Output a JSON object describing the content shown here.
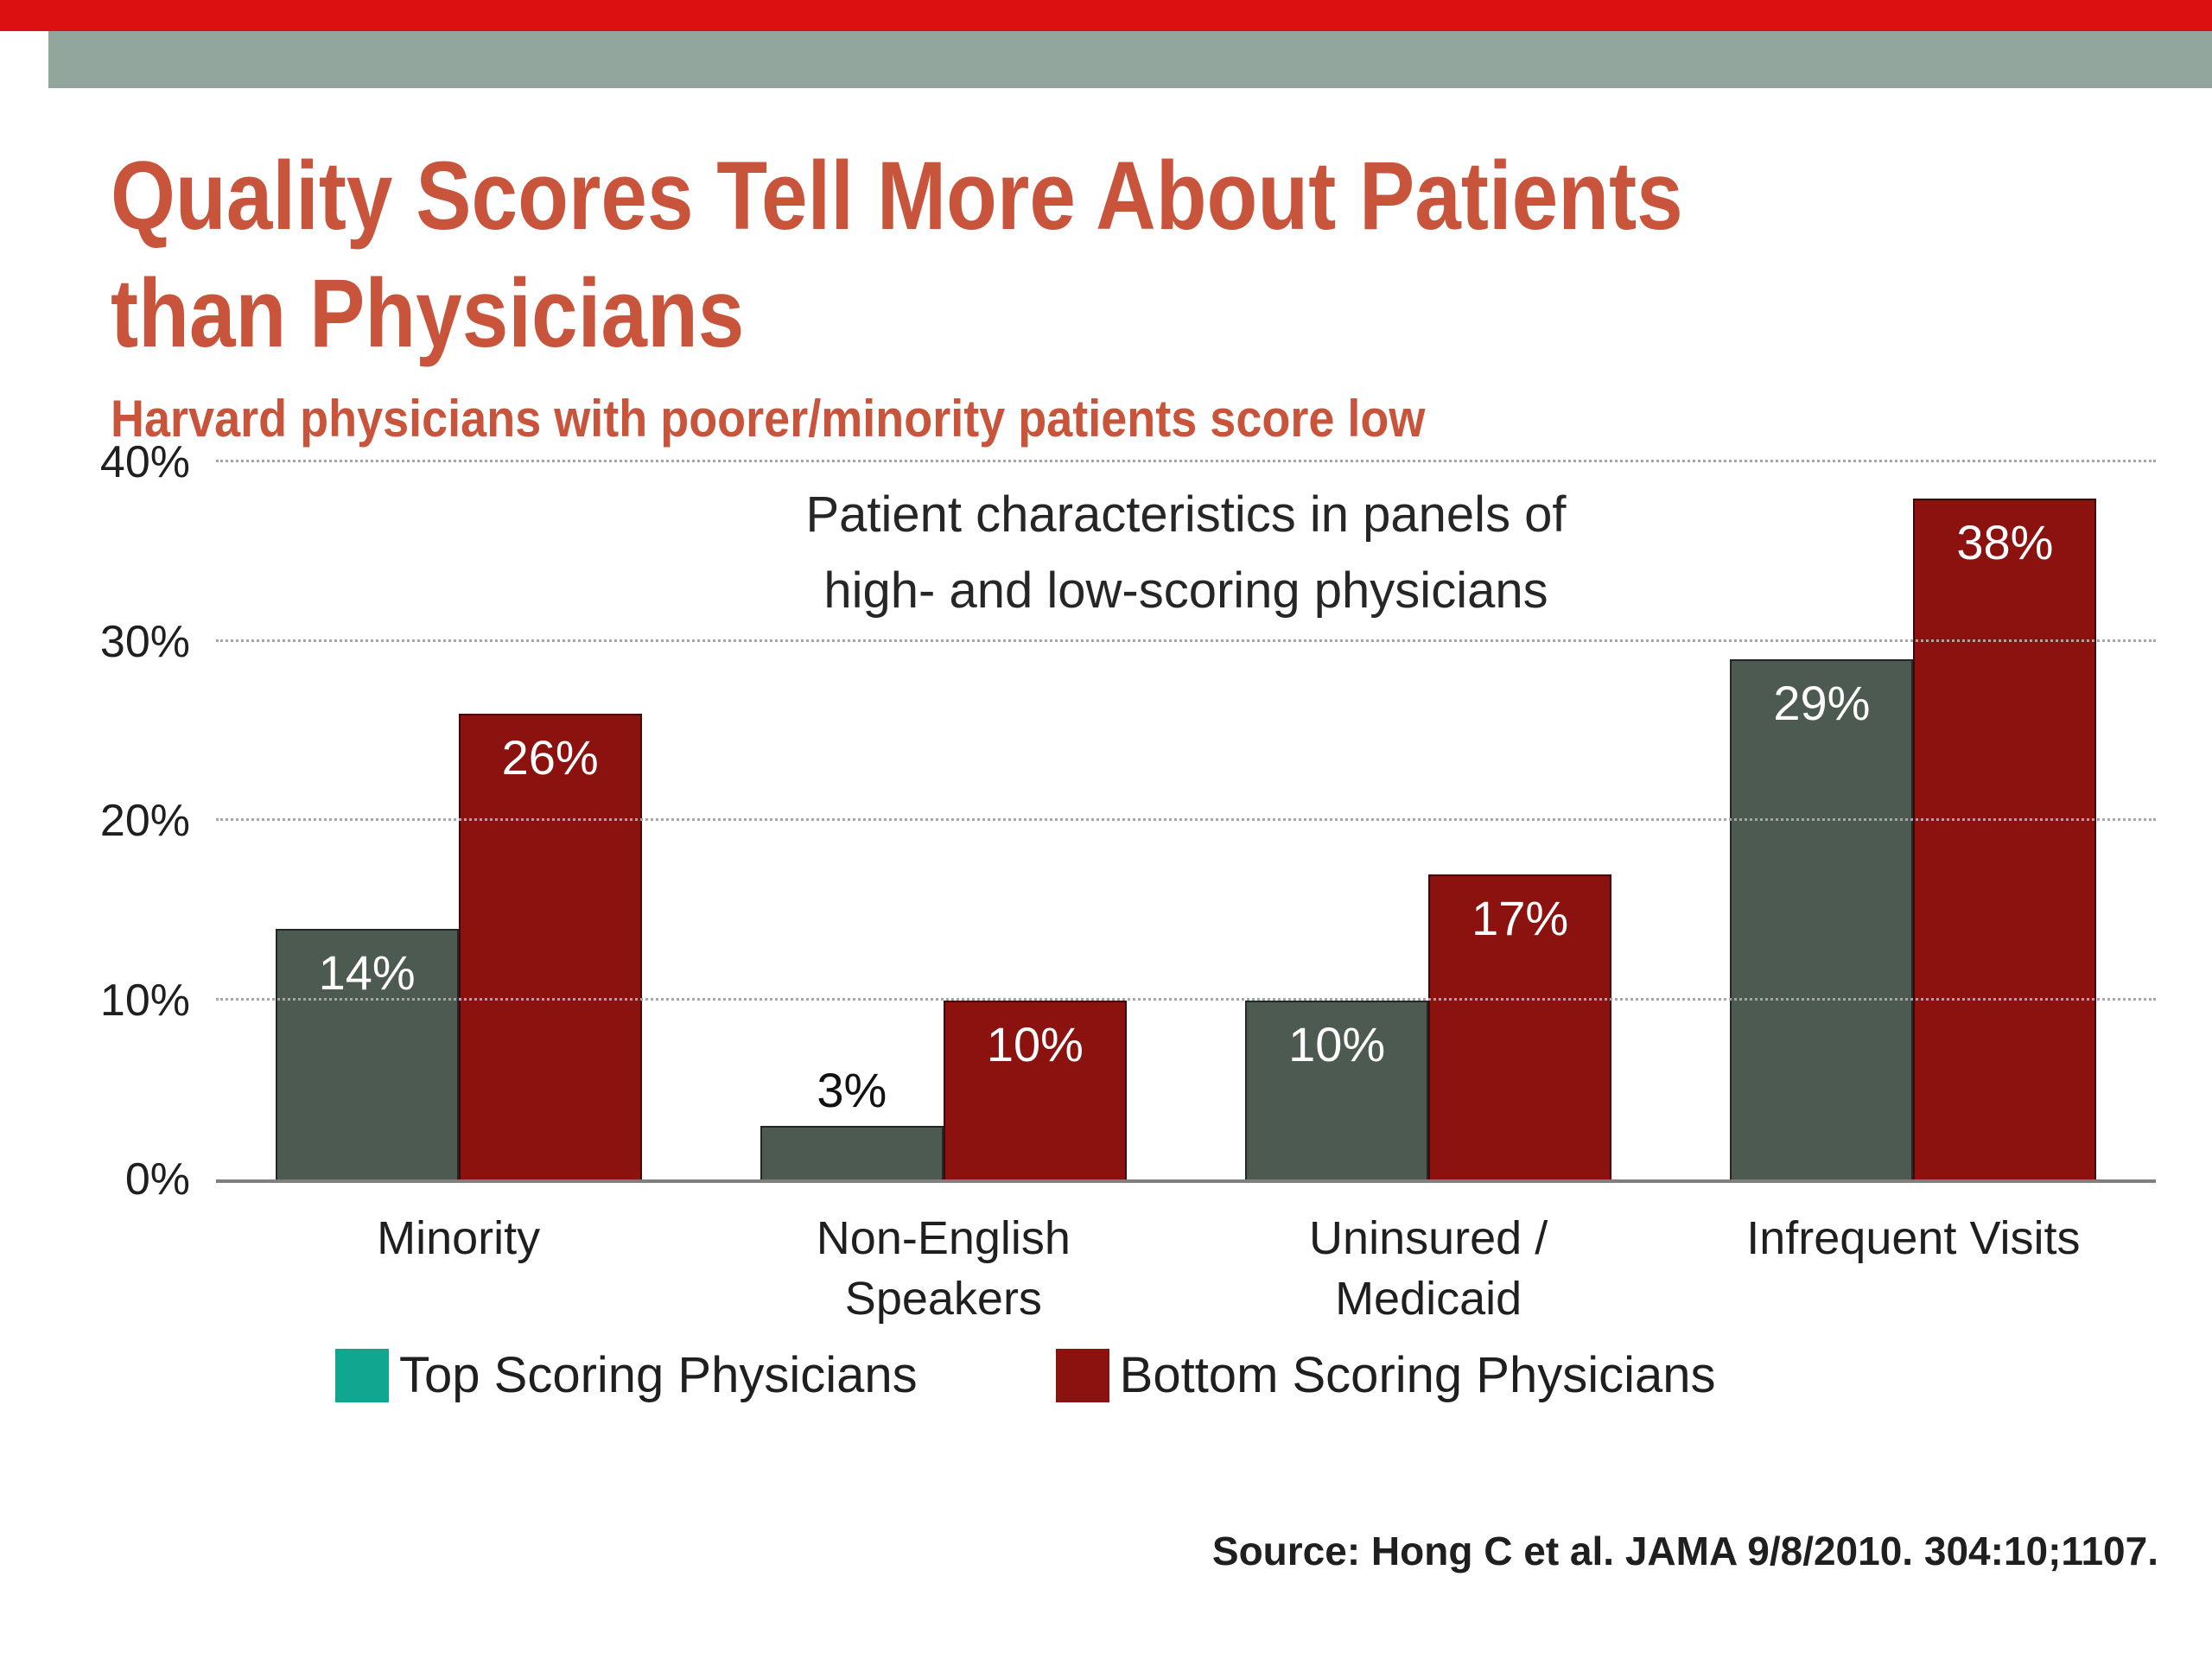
{
  "slide": {
    "title_lines": [
      "Quality Scores Tell More About Patients",
      "than Physicians"
    ],
    "subtitle": "Harvard physicians with poorer/minority patients score low",
    "source": "Source: Hong C et al. JAMA 9/8/2010. 304:10;1107."
  },
  "chart_data": {
    "type": "bar",
    "title": "Patient characteristics in panels of high- and low-scoring physicians",
    "title_lines": [
      "Patient characteristics in panels of",
      "high- and low-scoring physicians"
    ],
    "categories": [
      "Minority",
      "Non-English Speakers",
      "Uninsured / Medicaid",
      "Infrequent Visits"
    ],
    "category_lines": [
      [
        "Minority"
      ],
      [
        "Non-English",
        "Speakers"
      ],
      [
        "Uninsured /",
        "Medicaid"
      ],
      [
        "Infrequent Visits"
      ]
    ],
    "series": [
      {
        "name": "Top Scoring Physicians",
        "values": [
          14,
          3,
          10,
          29
        ],
        "labels": [
          "14%",
          "3%",
          "10%",
          "29%"
        ],
        "bar_color": "#4D5A52",
        "legend_color": "#11A78F"
      },
      {
        "name": "Bottom Scoring Physicians",
        "values": [
          26,
          10,
          17,
          38
        ],
        "labels": [
          "26%",
          "10%",
          "17%",
          "38%"
        ],
        "bar_color": "#8C1210",
        "legend_color": "#8C1210"
      }
    ],
    "ylim": [
      0,
      40
    ],
    "yticks": [
      "0%",
      "10%",
      "20%",
      "30%",
      "40%"
    ],
    "grid": "dotted-horizontal",
    "legend_position": "bottom"
  },
  "colors": {
    "top_strip": "#DC1010",
    "band": "#93A69E",
    "title_text": "#C8553B",
    "axis_text": "#1F1F1F",
    "gridline": "#A6A6A6",
    "axis_line": "#7F7F7F",
    "label_on_bar": "#FFFFFF",
    "label_above_bar": "#111111"
  }
}
